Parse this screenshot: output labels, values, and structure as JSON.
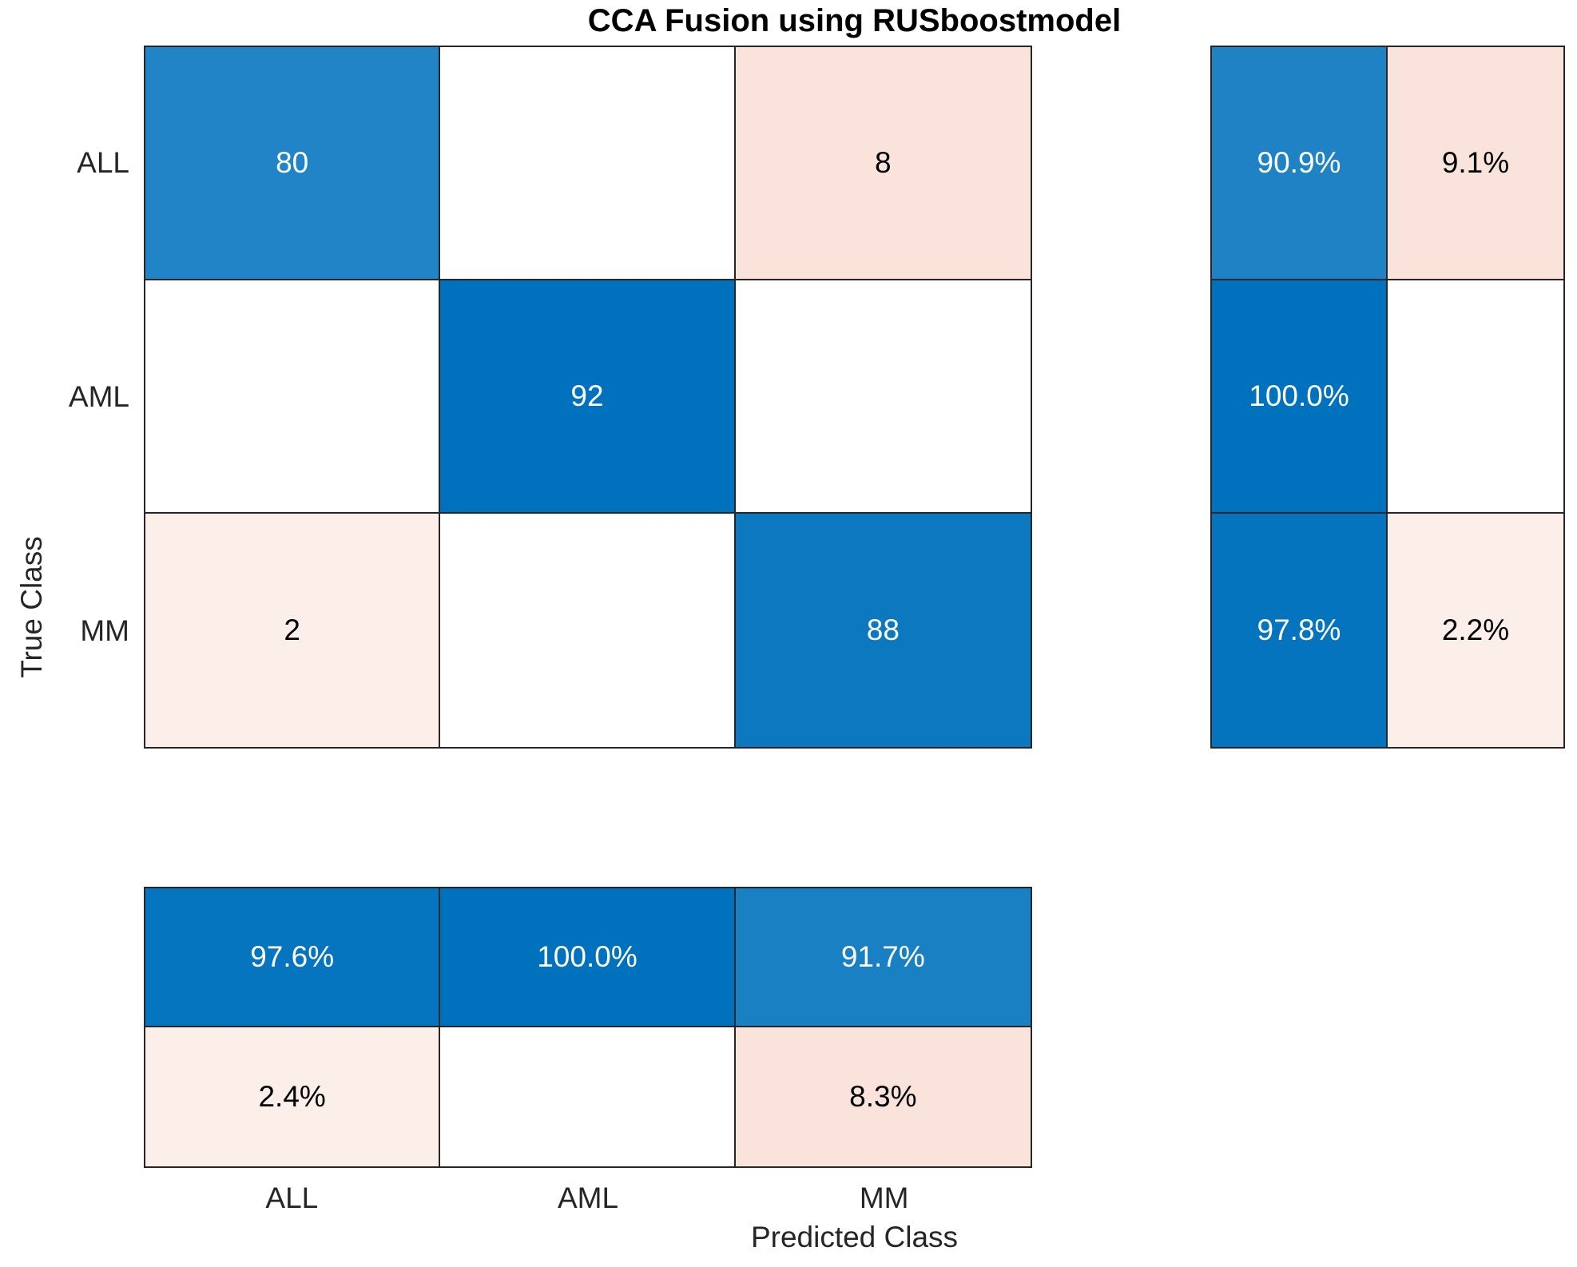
{
  "title": "CCA Fusion using RUSboostmodel",
  "axes": {
    "xlabel": "Predicted Class",
    "ylabel": "True Class"
  },
  "colors": {
    "background": "#FFFFFF",
    "border": "#262626",
    "diagonal_base_blue": "#0072BD",
    "off_diagonal_pink": "#F9E3DA",
    "white_text": "#FFFFFF",
    "black_text": "#000000"
  },
  "chart_data": {
    "type": "heatmap",
    "variant": "confusion_matrix",
    "title": "CCA Fusion using RUSboostmodel",
    "xlabel": "Predicted Class",
    "ylabel": "True Class",
    "classes": [
      "ALL",
      "AML",
      "MM"
    ],
    "counts": [
      [
        80,
        0,
        8
      ],
      [
        0,
        92,
        0
      ],
      [
        2,
        0,
        88
      ]
    ],
    "row_summary_percent": [
      [
        90.9,
        9.1
      ],
      [
        100.0,
        null
      ],
      [
        97.8,
        2.2
      ]
    ],
    "column_summary_percent": [
      [
        97.6,
        100.0,
        91.7
      ],
      [
        2.4,
        null,
        8.3
      ]
    ],
    "matrix_labels": [
      [
        "80",
        "",
        "8"
      ],
      [
        "",
        "92",
        ""
      ],
      [
        "2",
        "",
        "88"
      ]
    ],
    "matrix_bg": [
      [
        "#2184C6",
        "#FFFFFF",
        "#F9E3DA"
      ],
      [
        "#FFFFFF",
        "#0072BD",
        "#FFFFFF"
      ],
      [
        "#FCEFEA",
        "#FFFFFF",
        "#0B78C0"
      ]
    ],
    "matrix_fg": [
      [
        "#FFFFFF",
        "#000000",
        "#000000"
      ],
      [
        "#000000",
        "#FFFFFF",
        "#000000"
      ],
      [
        "#000000",
        "#000000",
        "#FFFFFF"
      ]
    ],
    "row_summary_labels": [
      [
        "90.9%",
        "9.1%"
      ],
      [
        "100.0%",
        ""
      ],
      [
        "97.8%",
        "2.2%"
      ]
    ],
    "row_summary_bg": [
      [
        "#1E82C5",
        "#F9E3DA"
      ],
      [
        "#0072BD",
        "#FFFFFF"
      ],
      [
        "#0474BE",
        "#FCEFEA"
      ]
    ],
    "row_summary_fg": [
      [
        "#FFFFFF",
        "#000000"
      ],
      [
        "#FFFFFF",
        "#000000"
      ],
      [
        "#FFFFFF",
        "#000000"
      ]
    ],
    "column_summary_labels": [
      [
        "97.6%",
        "100.0%",
        "91.7%"
      ],
      [
        "2.4%",
        "",
        "8.3%"
      ]
    ],
    "column_summary_bg": [
      [
        "#0575BF",
        "#0072BD",
        "#1980C4"
      ],
      [
        "#FCEFEA",
        "#FFFFFF",
        "#F9E3DA"
      ]
    ],
    "column_summary_fg": [
      [
        "#FFFFFF",
        "#FFFFFF",
        "#FFFFFF"
      ],
      [
        "#000000",
        "#000000",
        "#000000"
      ]
    ],
    "layout": {
      "grid": false,
      "row_summary_position": "right",
      "column_summary_position": "bottom"
    }
  }
}
